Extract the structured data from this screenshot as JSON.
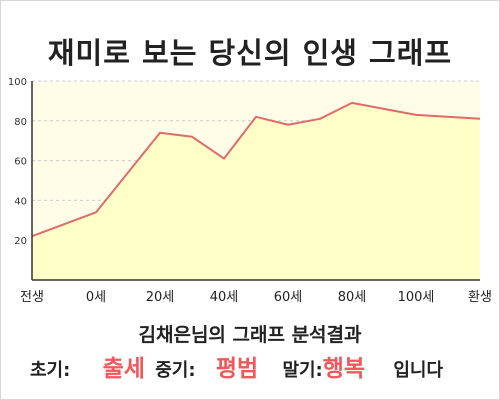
{
  "colors": {
    "plot_bg": "#fffde8",
    "area_fill": "#ffffc8",
    "line": "#e06a6a",
    "axis": "#333333",
    "grid": "#cccccc",
    "accent": "#f0585c"
  },
  "chart_data": {
    "type": "area",
    "title": "재미로 보는 당신의 인생 그래프",
    "xlabel": "",
    "ylabel": "",
    "x_tick_labels": [
      "전생",
      "0세",
      "20세",
      "40세",
      "60세",
      "80세",
      "100세",
      "환생"
    ],
    "x_positions": [
      -20,
      0,
      20,
      40,
      60,
      80,
      100,
      120
    ],
    "xlim": [
      -20,
      120
    ],
    "ylim": [
      0,
      100
    ],
    "y_ticks": [
      20,
      40,
      60,
      80,
      100
    ],
    "grid": "horizontal dashed",
    "series": [
      {
        "x": [
          -20,
          0,
          20,
          30,
          40,
          50,
          60,
          70,
          80,
          90,
          100,
          120
        ],
        "y": [
          22,
          34,
          74,
          72,
          61,
          82,
          78,
          81,
          89,
          86,
          83,
          81
        ]
      }
    ]
  },
  "summary": {
    "title": "김채은님의 그래프 분석결과",
    "early_label": "초기:",
    "early_value": "출세",
    "middle_label": "중기:",
    "middle_value": "평범",
    "late_label": "말기:",
    "late_value": "행복",
    "ending": "입니다"
  }
}
